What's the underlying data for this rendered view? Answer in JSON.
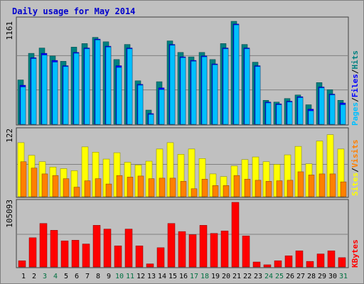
{
  "title": "Daily usage for May 2014",
  "colors": {
    "background": "#c0c0c0",
    "frame": "#808080",
    "panel_border": "#404040",
    "grid": "#808080",
    "title": "#0000cc",
    "hits": "#008080",
    "files": "#0000ff",
    "pages": "#00c0ff",
    "visits": "#ff8000",
    "sites": "#ffff00",
    "kbytes": "#ff0000",
    "weekend_day": "#007040",
    "weekday": "#000000"
  },
  "legend": {
    "pages": "Pages",
    "files": "Files",
    "hits": "Hits",
    "sites": "Sites",
    "visits": "Visits",
    "kbytes": "KBytes",
    "sep": "/"
  },
  "axis_max": {
    "hits": "1161",
    "visits": "122",
    "kbytes": "105093"
  },
  "chart_data": [
    {
      "type": "bar",
      "title": "Daily usage for May 2014",
      "categories": [
        "1",
        "2",
        "3",
        "4",
        "5",
        "6",
        "7",
        "8",
        "9",
        "10",
        "11",
        "12",
        "13",
        "14",
        "15",
        "16",
        "17",
        "18",
        "19",
        "20",
        "21",
        "22",
        "23",
        "24",
        "25",
        "26",
        "27",
        "28",
        "29",
        "30",
        "31"
      ],
      "weekend_days": [
        3,
        4,
        10,
        11,
        17,
        18,
        24,
        25,
        31
      ],
      "ylim": [
        0,
        1161
      ],
      "ylabel_max": "1161",
      "series": [
        {
          "name": "Hits",
          "values": [
            500,
            800,
            860,
            770,
            710,
            870,
            910,
            980,
            930,
            730,
            900,
            490,
            160,
            480,
            940,
            810,
            760,
            810,
            730,
            910,
            1161,
            900,
            700,
            270,
            250,
            290,
            330,
            220,
            470,
            390,
            270
          ]
        },
        {
          "name": "Files",
          "values": [
            440,
            750,
            800,
            720,
            660,
            810,
            860,
            960,
            880,
            660,
            860,
            450,
            120,
            410,
            900,
            760,
            720,
            770,
            680,
            860,
            1130,
            860,
            660,
            250,
            230,
            260,
            310,
            170,
            420,
            340,
            240
          ]
        },
        {
          "name": "Pages",
          "values": [
            420,
            740,
            780,
            700,
            650,
            800,
            850,
            950,
            870,
            640,
            850,
            440,
            110,
            390,
            890,
            750,
            710,
            760,
            670,
            850,
            1120,
            850,
            650,
            240,
            220,
            250,
            300,
            150,
            410,
            330,
            220
          ]
        }
      ]
    },
    {
      "type": "bar",
      "categories": [
        "1",
        "2",
        "3",
        "4",
        "5",
        "6",
        "7",
        "8",
        "9",
        "10",
        "11",
        "12",
        "13",
        "14",
        "15",
        "16",
        "17",
        "18",
        "19",
        "20",
        "21",
        "22",
        "23",
        "24",
        "25",
        "26",
        "27",
        "28",
        "29",
        "30",
        "31"
      ],
      "ylim": [
        0,
        122
      ],
      "ylabel_max": "122",
      "series": [
        {
          "name": "Sites",
          "values": [
            102,
            78,
            66,
            56,
            53,
            49,
            94,
            84,
            71,
            83,
            65,
            60,
            67,
            90,
            102,
            80,
            90,
            72,
            43,
            38,
            58,
            70,
            75,
            66,
            61,
            79,
            95,
            62,
            105,
            117,
            90
          ]
        },
        {
          "name": "Visits",
          "values": [
            66,
            54,
            43,
            40,
            34,
            18,
            30,
            34,
            24,
            40,
            37,
            39,
            34,
            35,
            35,
            29,
            15,
            33,
            21,
            21,
            40,
            33,
            31,
            29,
            30,
            31,
            47,
            41,
            43,
            43,
            28
          ]
        }
      ]
    },
    {
      "type": "bar",
      "categories": [
        "1",
        "2",
        "3",
        "4",
        "5",
        "6",
        "7",
        "8",
        "9",
        "10",
        "11",
        "12",
        "13",
        "14",
        "15",
        "16",
        "17",
        "18",
        "19",
        "20",
        "21",
        "22",
        "23",
        "24",
        "25",
        "26",
        "27",
        "28",
        "29",
        "30",
        "31"
      ],
      "ylim": [
        0,
        105093
      ],
      "ylabel_max": "105093",
      "series": [
        {
          "name": "KBytes",
          "values": [
            10000,
            47000,
            70000,
            59000,
            42000,
            43000,
            37000,
            67000,
            61000,
            34000,
            61000,
            34000,
            5000,
            31000,
            70000,
            57000,
            52000,
            67000,
            54000,
            58000,
            104000,
            50000,
            8000,
            3500,
            10000,
            18000,
            26000,
            9000,
            21000,
            26000,
            15000
          ]
        }
      ]
    }
  ]
}
